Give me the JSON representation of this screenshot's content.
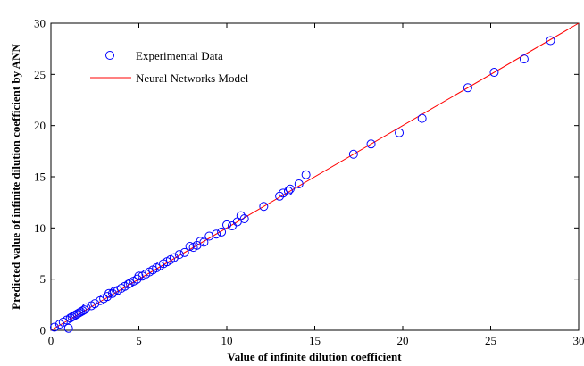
{
  "chart_data": {
    "type": "scatter",
    "xlabel": "Value of infinite dilution coefficient",
    "ylabel": "Predicted value of infinite dilution coefficient by ANN",
    "xlim": [
      0,
      30
    ],
    "ylim": [
      0,
      30
    ],
    "xticks": [
      "0",
      "5",
      "10",
      "15",
      "20",
      "25",
      "30"
    ],
    "yticks": [
      "0",
      "5",
      "10",
      "15",
      "20",
      "25",
      "30"
    ],
    "grid": false,
    "legend_position": "top-left",
    "series": [
      {
        "name": "Experimental Data",
        "marker": "circle",
        "color": "#0000ff",
        "points": [
          [
            0.2,
            0.3
          ],
          [
            0.5,
            0.6
          ],
          [
            0.7,
            0.8
          ],
          [
            0.9,
            1.0
          ],
          [
            1.0,
            0.2
          ],
          [
            1.1,
            1.2
          ],
          [
            1.2,
            1.3
          ],
          [
            1.3,
            1.4
          ],
          [
            1.4,
            1.5
          ],
          [
            1.5,
            1.6
          ],
          [
            1.6,
            1.7
          ],
          [
            1.7,
            1.8
          ],
          [
            1.8,
            1.9
          ],
          [
            1.9,
            2.0
          ],
          [
            2.0,
            2.2
          ],
          [
            2.3,
            2.4
          ],
          [
            2.5,
            2.6
          ],
          [
            2.8,
            2.9
          ],
          [
            3.0,
            3.1
          ],
          [
            3.2,
            3.3
          ],
          [
            3.3,
            3.6
          ],
          [
            3.5,
            3.6
          ],
          [
            3.6,
            3.8
          ],
          [
            3.8,
            3.9
          ],
          [
            4.0,
            4.1
          ],
          [
            4.2,
            4.3
          ],
          [
            4.4,
            4.5
          ],
          [
            4.5,
            4.6
          ],
          [
            4.7,
            4.8
          ],
          [
            4.9,
            5.0
          ],
          [
            5.0,
            5.3
          ],
          [
            5.2,
            5.3
          ],
          [
            5.4,
            5.5
          ],
          [
            5.6,
            5.7
          ],
          [
            5.8,
            5.9
          ],
          [
            6.0,
            6.1
          ],
          [
            6.2,
            6.3
          ],
          [
            6.4,
            6.5
          ],
          [
            6.6,
            6.7
          ],
          [
            6.8,
            6.9
          ],
          [
            7.0,
            7.1
          ],
          [
            7.3,
            7.4
          ],
          [
            7.6,
            7.6
          ],
          [
            7.9,
            8.2
          ],
          [
            8.1,
            8.1
          ],
          [
            8.3,
            8.3
          ],
          [
            8.5,
            8.7
          ],
          [
            8.7,
            8.6
          ],
          [
            9.0,
            9.2
          ],
          [
            9.4,
            9.4
          ],
          [
            9.7,
            9.6
          ],
          [
            10.0,
            10.3
          ],
          [
            10.3,
            10.2
          ],
          [
            10.6,
            10.6
          ],
          [
            10.8,
            11.2
          ],
          [
            11.0,
            10.9
          ],
          [
            12.1,
            12.1
          ],
          [
            13.0,
            13.1
          ],
          [
            13.2,
            13.4
          ],
          [
            13.5,
            13.6
          ],
          [
            13.6,
            13.8
          ],
          [
            14.1,
            14.3
          ],
          [
            14.5,
            15.2
          ],
          [
            17.2,
            17.2
          ],
          [
            18.2,
            18.2
          ],
          [
            19.8,
            19.3
          ],
          [
            21.1,
            20.7
          ],
          [
            23.7,
            23.7
          ],
          [
            25.2,
            25.2
          ],
          [
            26.9,
            26.5
          ],
          [
            28.4,
            28.3
          ]
        ]
      },
      {
        "name": "Neural Networks Model",
        "marker": "line",
        "color": "#ff0000",
        "points": [
          [
            0,
            0
          ],
          [
            30,
            30
          ]
        ]
      }
    ]
  }
}
